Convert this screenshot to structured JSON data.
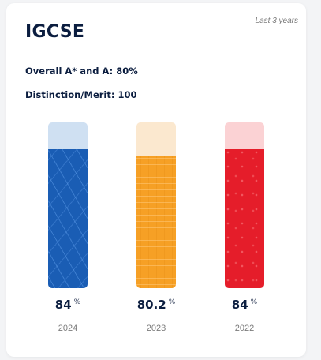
{
  "header": {
    "title": "IGCSE",
    "period": "Last 3 years"
  },
  "stats": {
    "overall": "Overall A* and A: 80%",
    "distinction": "Distinction/Merit: 100"
  },
  "results": [
    {
      "year": "2024",
      "value": "84",
      "unit": "%",
      "percent": 84,
      "color": "#1a5db4",
      "track_color": "#cfe0f2"
    },
    {
      "year": "2023",
      "value": "80.2",
      "unit": "%",
      "percent": 80.2,
      "color": "#f6a025",
      "track_color": "#fbe8cf"
    },
    {
      "year": "2022",
      "value": "84",
      "unit": "%",
      "percent": 84,
      "color": "#e51d2a",
      "track_color": "#fbd2d4"
    }
  ]
}
